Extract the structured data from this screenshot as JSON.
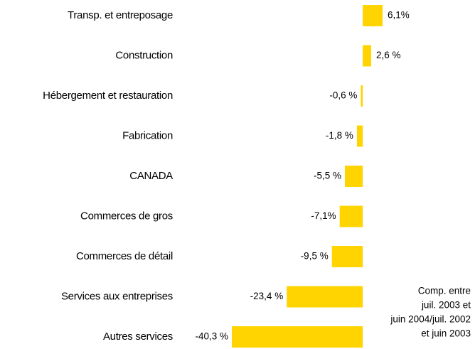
{
  "chart_data": {
    "type": "bar",
    "orientation": "horizontal",
    "categories": [
      "Transp. et entreposage",
      "Construction",
      "Hébergement et restauration",
      "Fabrication",
      "CANADA",
      "Commerces de gros",
      "Commerces de détail",
      "Services aux entreprises",
      "Autres services"
    ],
    "values": [
      6.1,
      2.6,
      -0.6,
      -1.8,
      -5.5,
      -7.1,
      -9.5,
      -23.4,
      -40.3
    ],
    "value_labels": [
      "6,1%",
      "2,6 %",
      "-0,6 %",
      "-1,8 %",
      "-5,5 %",
      "-7,1%",
      "-9,5 %",
      "-23,4 %",
      "-40,3 %"
    ],
    "color": "#ffd400",
    "annotation": [
      "Comp. entre",
      "juil. 2003 et",
      "juin 2004/juil. 2002",
      "et juin 2003"
    ]
  }
}
